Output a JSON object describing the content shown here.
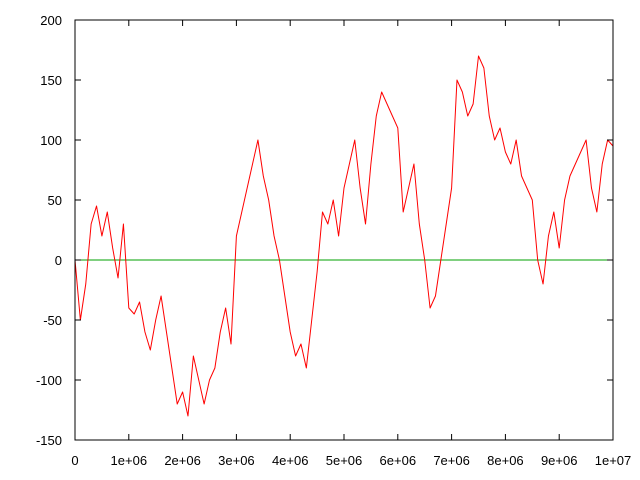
{
  "chart_data": {
    "type": "line",
    "title": "",
    "xlabel": "",
    "ylabel": "",
    "xlim": [
      0,
      10000000
    ],
    "ylim": [
      -150,
      200
    ],
    "grid": false,
    "legend": "none",
    "x_ticks": [
      {
        "value": 0,
        "label": "0"
      },
      {
        "value": 1000000,
        "label": "1e+06"
      },
      {
        "value": 2000000,
        "label": "2e+06"
      },
      {
        "value": 3000000,
        "label": "3e+06"
      },
      {
        "value": 4000000,
        "label": "4e+06"
      },
      {
        "value": 5000000,
        "label": "5e+06"
      },
      {
        "value": 6000000,
        "label": "6e+06"
      },
      {
        "value": 7000000,
        "label": "7e+06"
      },
      {
        "value": 8000000,
        "label": "8e+06"
      },
      {
        "value": 9000000,
        "label": "9e+06"
      },
      {
        "value": 10000000,
        "label": "1e+07"
      }
    ],
    "y_ticks": [
      {
        "value": -150,
        "label": "-150"
      },
      {
        "value": -100,
        "label": "-100"
      },
      {
        "value": -50,
        "label": "-50"
      },
      {
        "value": 0,
        "label": "0"
      },
      {
        "value": 50,
        "label": "50"
      },
      {
        "value": 100,
        "label": "100"
      },
      {
        "value": 150,
        "label": "150"
      },
      {
        "value": 200,
        "label": "200"
      }
    ],
    "series": [
      {
        "color": "#ff0000",
        "x": [
          0,
          100000,
          200000,
          300000,
          400000,
          500000,
          600000,
          700000,
          800000,
          900000,
          1000000,
          1100000,
          1200000,
          1300000,
          1400000,
          1500000,
          1600000,
          1700000,
          1800000,
          1900000,
          2000000,
          2100000,
          2200000,
          2300000,
          2400000,
          2500000,
          2600000,
          2700000,
          2800000,
          2900000,
          3000000,
          3100000,
          3200000,
          3300000,
          3400000,
          3500000,
          3600000,
          3700000,
          3800000,
          3900000,
          4000000,
          4100000,
          4200000,
          4300000,
          4400000,
          4500000,
          4600000,
          4700000,
          4800000,
          4900000,
          5000000,
          5100000,
          5200000,
          5300000,
          5400000,
          5500000,
          5600000,
          5700000,
          5800000,
          5900000,
          6000000,
          6100000,
          6200000,
          6300000,
          6400000,
          6500000,
          6600000,
          6700000,
          6800000,
          6900000,
          7000000,
          7100000,
          7200000,
          7300000,
          7400000,
          7500000,
          7600000,
          7700000,
          7800000,
          7900000,
          8000000,
          8100000,
          8200000,
          8300000,
          8400000,
          8500000,
          8600000,
          8700000,
          8800000,
          8900000,
          9000000,
          9100000,
          9200000,
          9300000,
          9400000,
          9500000,
          9600000,
          9700000,
          9800000,
          9900000,
          10000000
        ],
        "y": [
          0,
          -50,
          -20,
          30,
          45,
          20,
          40,
          10,
          -15,
          30,
          -40,
          -45,
          -35,
          -60,
          -75,
          -50,
          -30,
          -60,
          -90,
          -120,
          -110,
          -130,
          -80,
          -100,
          -120,
          -100,
          -90,
          -60,
          -40,
          -70,
          20,
          40,
          60,
          80,
          100,
          70,
          50,
          20,
          0,
          -30,
          -60,
          -80,
          -70,
          -90,
          -50,
          -10,
          40,
          30,
          50,
          20,
          60,
          80,
          100,
          60,
          30,
          80,
          120,
          140,
          130,
          120,
          110,
          40,
          60,
          80,
          30,
          0,
          -40,
          -30,
          0,
          30,
          60,
          150,
          140,
          120,
          130,
          170,
          160,
          120,
          100,
          110,
          90,
          80,
          100,
          70,
          60,
          50,
          0,
          -20,
          20,
          40,
          10,
          50,
          70,
          80,
          90,
          100,
          60,
          40,
          80,
          100,
          95
        ]
      },
      {
        "color": "#00a000",
        "x": [
          0,
          10000000
        ],
        "y": [
          0,
          0
        ]
      }
    ]
  }
}
